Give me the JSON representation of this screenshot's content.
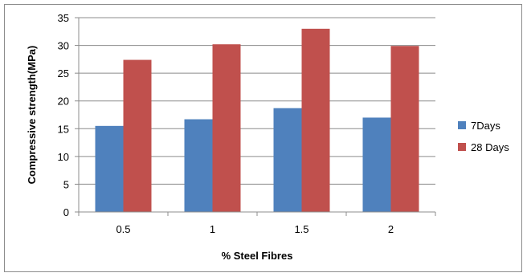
{
  "chart_data": {
    "type": "bar",
    "title": "",
    "xlabel": "% Steel Fibres",
    "ylabel": "Compressive strength(MPa)",
    "categories": [
      "0.5",
      "1",
      "1.5",
      "2"
    ],
    "ylim": [
      0,
      35
    ],
    "yticks": [
      0,
      5,
      10,
      15,
      20,
      25,
      30,
      35
    ],
    "grid": true,
    "legend_position": "right",
    "series": [
      {
        "name": "7Days",
        "color": "#4f81bd",
        "values": [
          15.5,
          16.7,
          18.7,
          17.0
        ]
      },
      {
        "name": "28 Days",
        "color": "#c0504d",
        "values": [
          27.4,
          30.2,
          33.0,
          29.9
        ]
      }
    ]
  }
}
